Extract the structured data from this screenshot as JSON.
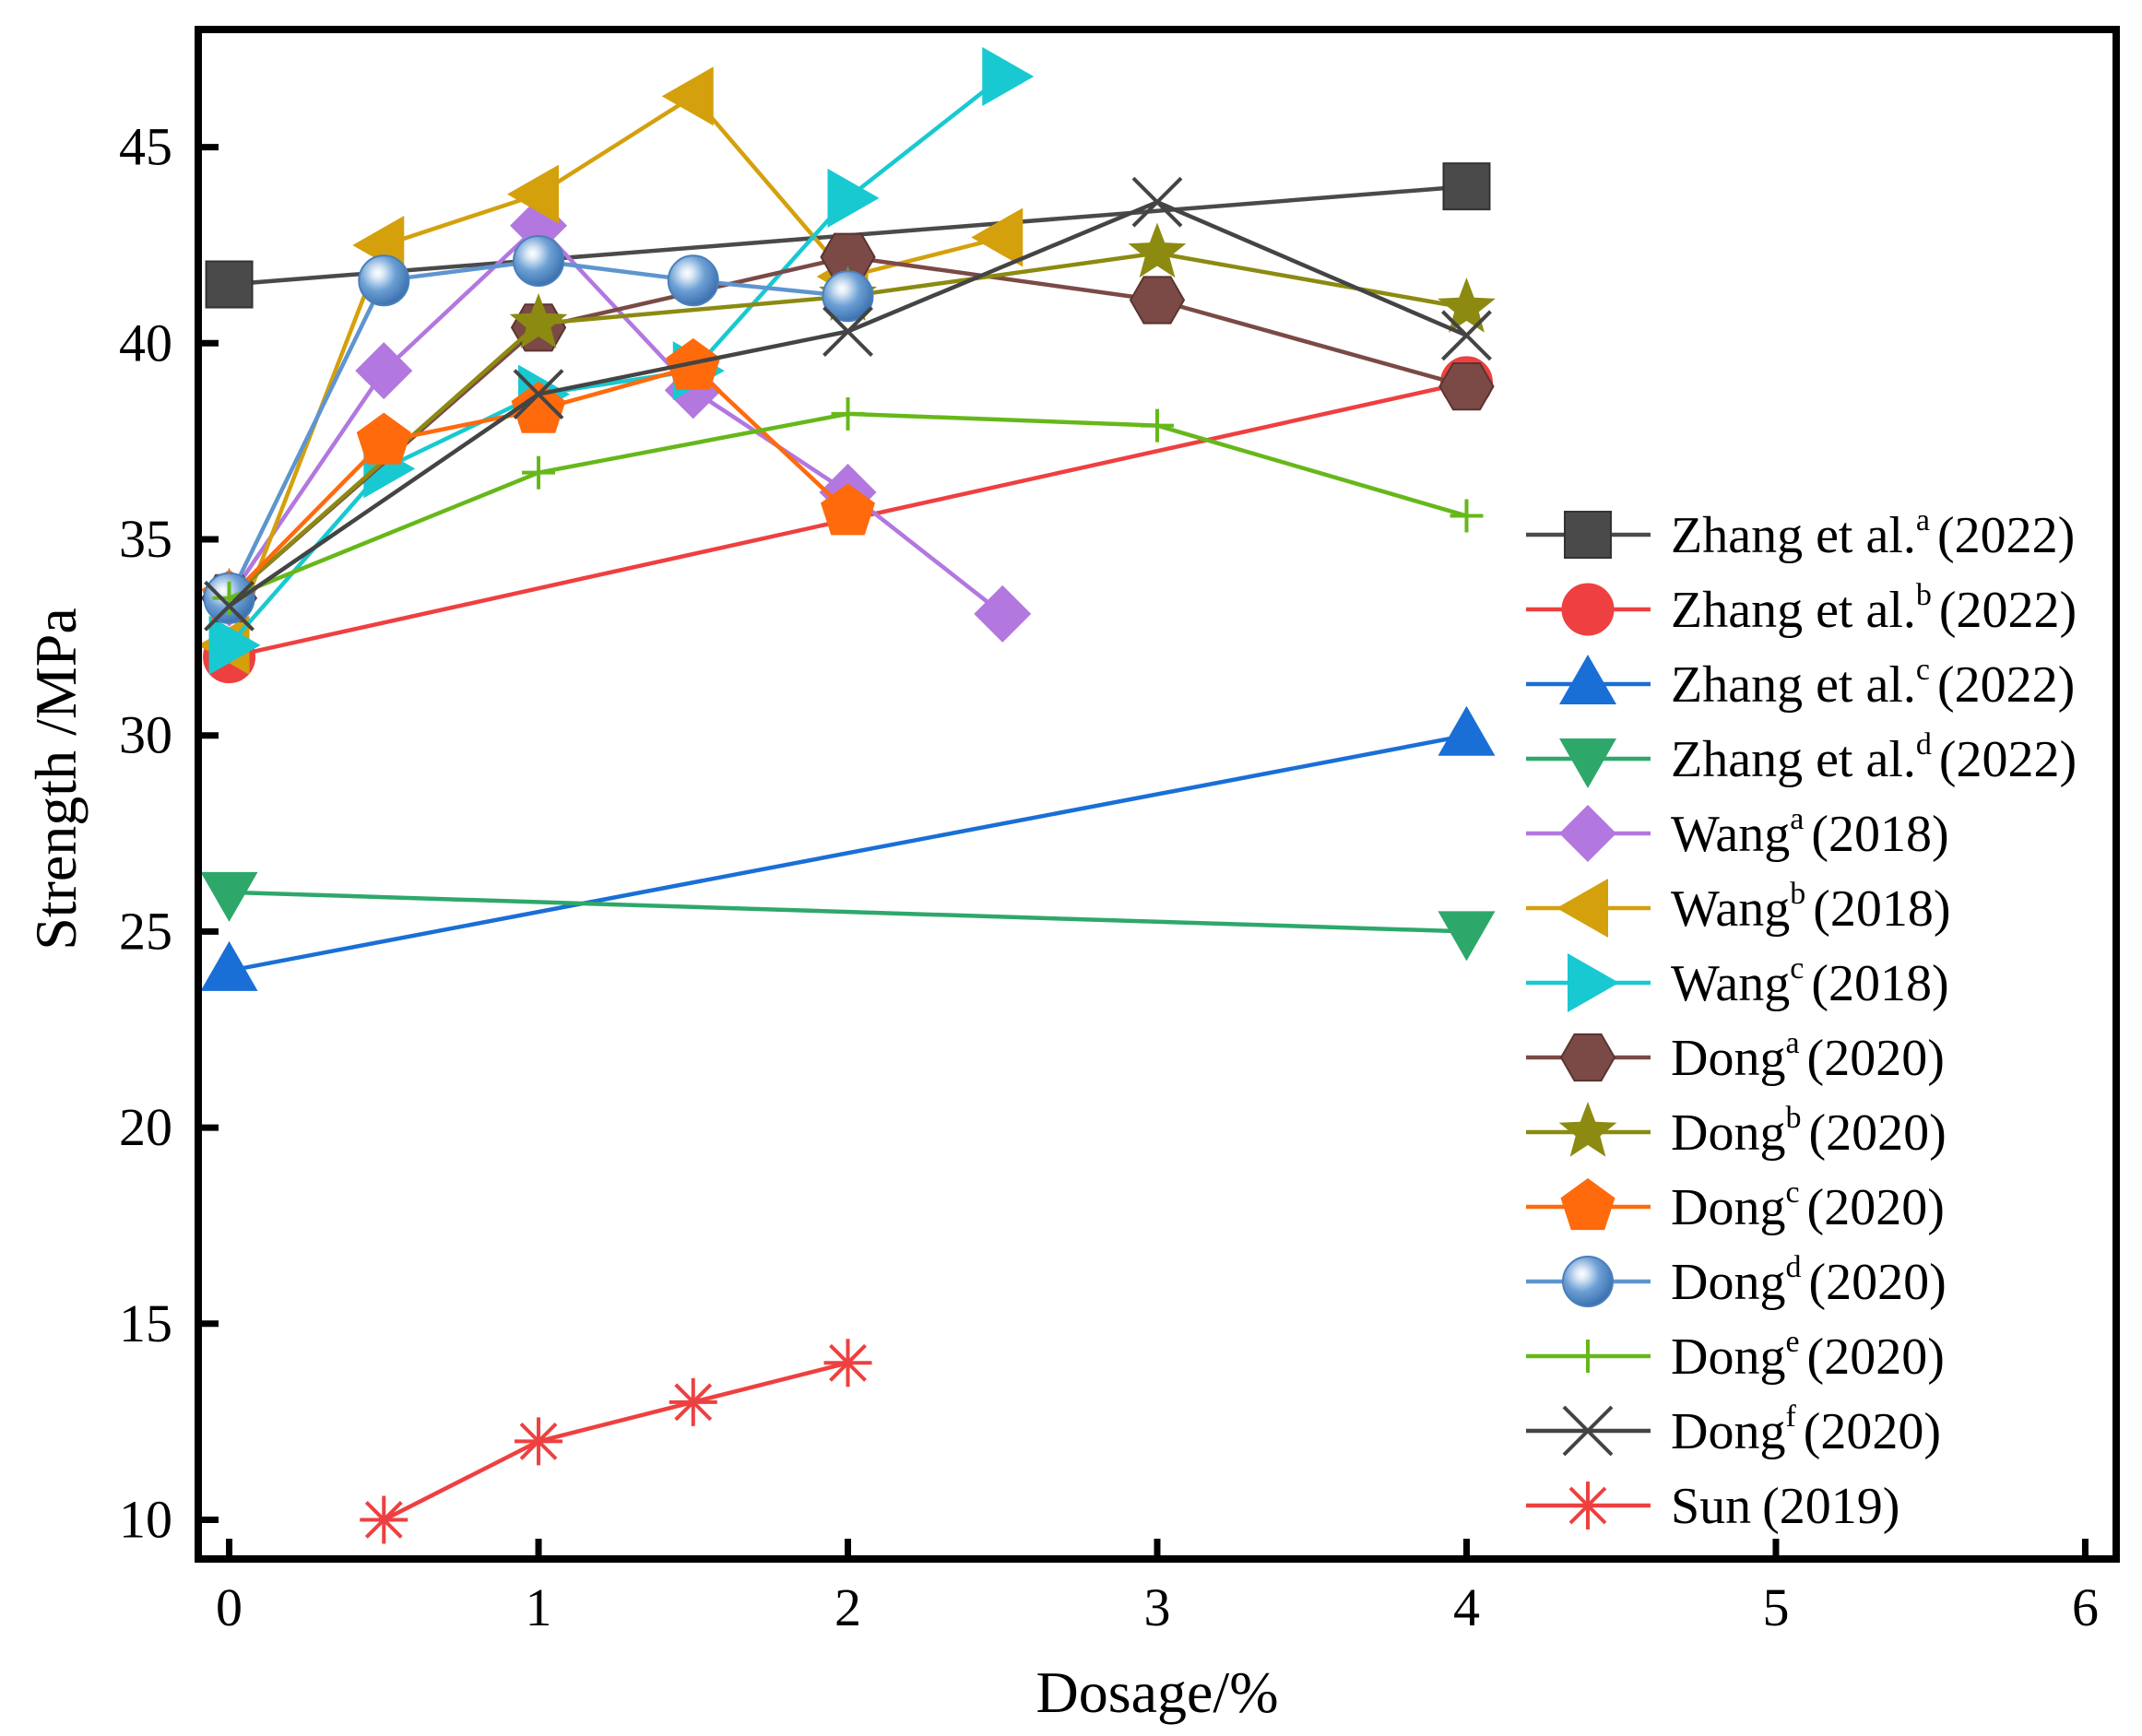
{
  "chart_data": {
    "type": "line",
    "title": "",
    "xlabel": "Dosage/%",
    "ylabel": "Strength /MPa",
    "xlim": [
      -0.1,
      6.1
    ],
    "ylim": [
      9,
      48
    ],
    "xticks": [
      0,
      1,
      2,
      3,
      4,
      5,
      6
    ],
    "yticks": [
      10,
      15,
      20,
      25,
      30,
      35,
      40,
      45
    ],
    "xtick_labels": [
      "0",
      "1",
      "2",
      "3",
      "4",
      "5",
      "6"
    ],
    "ytick_labels": [
      "10",
      "15",
      "20",
      "25",
      "30",
      "35",
      "40",
      "45"
    ],
    "grid": false,
    "legend_position": "right",
    "series": [
      {
        "name": "Zhang et al.a (2022)",
        "base": "Zhang et al.",
        "sup": "a",
        "year": "(2022)",
        "color": "#4a4a4a",
        "marker": "square",
        "x": [
          0,
          4
        ],
        "y": [
          41.5,
          44.0
        ]
      },
      {
        "name": "Zhang et al.b (2022)",
        "base": "Zhang et al.",
        "sup": "b",
        "year": "(2022)",
        "color": "#ee4040",
        "marker": "circle",
        "x": [
          0,
          4
        ],
        "y": [
          32.0,
          39.0
        ]
      },
      {
        "name": "Zhang et al.c (2022)",
        "base": "Zhang et al.",
        "sup": "c",
        "year": "(2022)",
        "color": "#1a6fd6",
        "marker": "triangle-up",
        "x": [
          0,
          4
        ],
        "y": [
          24.0,
          30.0
        ]
      },
      {
        "name": "Zhang et al.d (2022)",
        "base": "Zhang et al.",
        "sup": "d",
        "year": "(2022)",
        "color": "#2ea86a",
        "marker": "triangle-down",
        "x": [
          0,
          4
        ],
        "y": [
          26.0,
          25.0
        ]
      },
      {
        "name": "Wanga (2018)",
        "base": "Wang",
        "sup": "a",
        "year": "(2018)",
        "color": "#b377e0",
        "marker": "diamond",
        "x": [
          0,
          0.5,
          1,
          1.5,
          2,
          2.5
        ],
        "y": [
          33.5,
          39.3,
          43.0,
          38.8,
          36.2,
          33.1
        ]
      },
      {
        "name": "Wangb (2018)",
        "base": "Wang",
        "sup": "b",
        "year": "(2018)",
        "color": "#d4a00c",
        "marker": "triangle-left",
        "x": [
          0,
          0.5,
          1,
          1.5,
          2,
          2.5
        ],
        "y": [
          32.3,
          42.5,
          43.8,
          46.3,
          41.7,
          42.7
        ]
      },
      {
        "name": "Wangc (2018)",
        "base": "Wang",
        "sup": "c",
        "year": "(2018)",
        "color": "#18c9d1",
        "marker": "triangle-right",
        "x": [
          0,
          0.5,
          1,
          1.5,
          2,
          2.5
        ],
        "y": [
          32.3,
          36.8,
          38.7,
          39.3,
          43.7,
          46.8
        ]
      },
      {
        "name": "Donga (2020)",
        "base": "Dong",
        "sup": "a",
        "year": "(2020)",
        "color": "#7b4a46",
        "marker": "hexagon",
        "x": [
          0,
          1,
          2,
          3,
          4
        ],
        "y": [
          33.5,
          40.4,
          42.2,
          41.1,
          38.9
        ]
      },
      {
        "name": "Dongb (2020)",
        "base": "Dong",
        "sup": "b",
        "year": "(2020)",
        "color": "#8c8a10",
        "marker": "star",
        "x": [
          0,
          1,
          2,
          3,
          4
        ],
        "y": [
          33.5,
          40.5,
          41.2,
          42.3,
          40.9
        ]
      },
      {
        "name": "Dongc (2020)",
        "base": "Dong",
        "sup": "c",
        "year": "(2020)",
        "color": "#ff6a0d",
        "marker": "pentagon",
        "x": [
          0,
          0.5,
          1,
          1.5,
          2
        ],
        "y": [
          33.5,
          37.5,
          38.3,
          39.4,
          35.7
        ]
      },
      {
        "name": "Dongd (2020)",
        "base": "Dong",
        "sup": "d",
        "year": "(2020)",
        "color": "#5e95cf",
        "marker": "sphere",
        "x": [
          0,
          0.5,
          1,
          1.5,
          2
        ],
        "y": [
          33.5,
          41.6,
          42.1,
          41.6,
          41.2
        ]
      },
      {
        "name": "Donge (2020)",
        "base": "Dong",
        "sup": "e",
        "year": "(2020)",
        "color": "#66b81a",
        "marker": "plus",
        "x": [
          0,
          1,
          2,
          3,
          4
        ],
        "y": [
          33.5,
          36.7,
          38.2,
          37.9,
          35.6
        ]
      },
      {
        "name": "Dongf (2020)",
        "base": "Dong",
        "sup": "f",
        "year": "(2020)",
        "color": "#444444",
        "marker": "x",
        "x": [
          0,
          1,
          2,
          3,
          4
        ],
        "y": [
          33.3,
          38.7,
          40.3,
          43.6,
          40.2
        ]
      },
      {
        "name": "Sun (2019)",
        "base": "Sun",
        "sup": "",
        "year": "(2019)",
        "color": "#ee4040",
        "marker": "asterisk",
        "x": [
          0.5,
          1,
          1.5,
          2
        ],
        "y": [
          10.0,
          12.0,
          13.0,
          14.0
        ]
      }
    ]
  }
}
